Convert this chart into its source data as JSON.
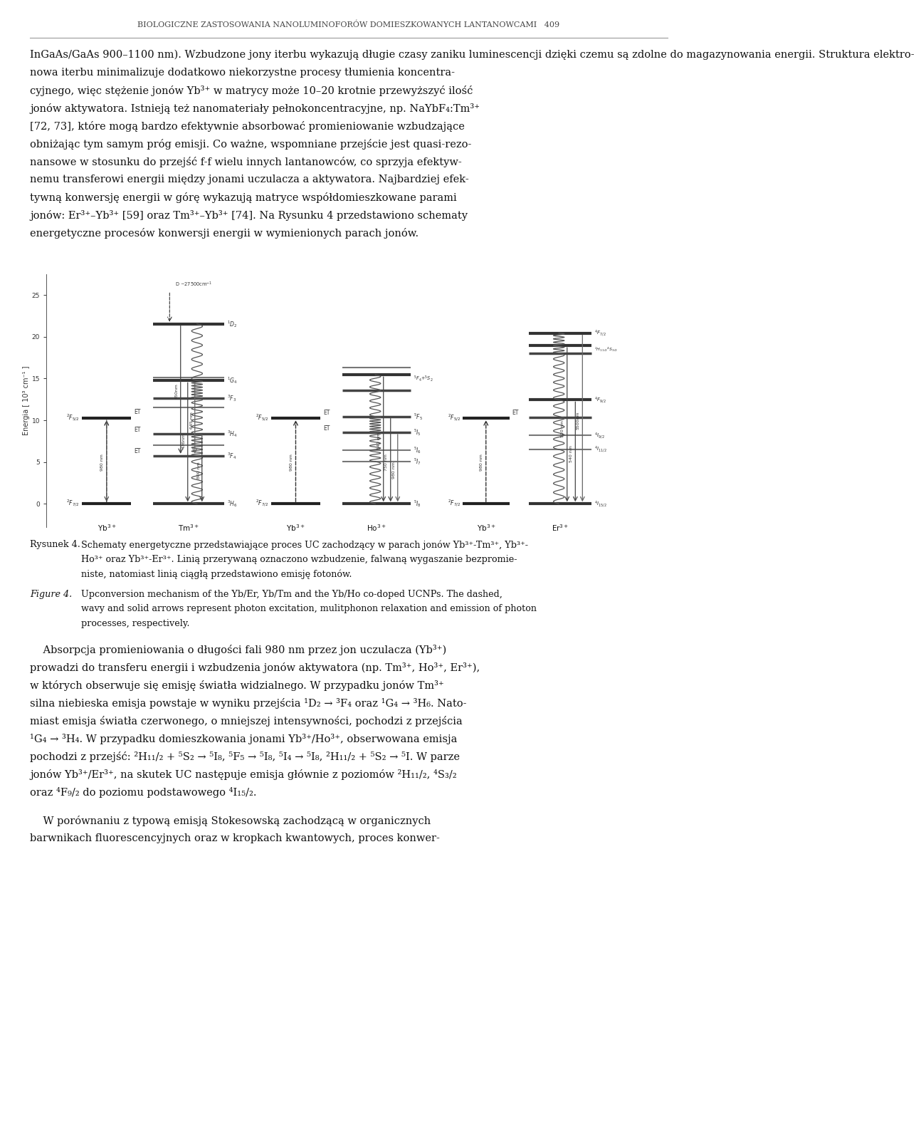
{
  "bg_color": "#ffffff",
  "text_color": "#111111",
  "header": "BIOLOGICZNE ZASTOSOWANIA NANOLUMINOFORÓW DOMIESZKOWANYCH LANTANOWCAMI   409",
  "para1_lines": [
    "InGaAs/GaAs 900–1100 nm). Wzbudzone jony iterbu wykazują długie czasy zaniku luminescencji dzięki czemu są zdolne do magazynowania energii. Struktura elektro-",
    "nowa iterbu minimalizuje dodatkowo niekorzystne procesy tłumienia koncentra-",
    "cyjnego, więc stężenie jonów Yb³⁺ w matrycy może 10–20 krotnie przewyższyć ilość",
    "jonów aktywatora. Istnieją też nanomateriały pełnokoncentracyjne, np. NaYbF₄:Tm³⁺",
    "[72, 73], które mogą bardzo efektywnie absorbować promieniowanie wzbudzające",
    "obniżając tym samym próg emisji. Co ważne, wspomniane przejście jest quasi-rezo-",
    "nansowe w stosunku do przejść f-f wielu innych lantanowców, co sprzyja efektyw-",
    "nemu transferowi energii między jonami uczulacza a aktywatora. Najbardziej efek-",
    "tywną konwersję energii w górę wykazują matryce współdomieszkowane parami",
    "jonów: Er³⁺–Yb³⁺ [59] oraz Tm³⁺–Yb³⁺ [74]. Na Rysunku 4 przedstawiono schematy",
    "energetyczne procesów konwersji energii w wymienionych parach jonów."
  ],
  "cap1a": "Rysunek 4.",
  "cap1b": "Schematy energetyczne przedstawiające proces UC zachodzący w parach jonów Yb³⁺-Tm³⁺, Yb³⁺-",
  "cap1c": "Ho³⁺ oraz Yb³⁺-Er³⁺. Linią przerywaną oznaczono wzbudzenie, falwaną wygaszanie bezpromie-",
  "cap1d": "niste, natomiast linią ciągłą przedstawiono emisję fotonów.",
  "cap2a": "Figure 4.",
  "cap2b": "Upconversion mechanism of the Yb/Er, Yb/Tm and the Yb/Ho co-doped UCNPs. The dashed,",
  "cap2c": "wavy and solid arrows represent photon excitation, mulitphonon relaxation and emission of photon",
  "cap2d": "processes, respectively.",
  "para2_lines": [
    "    Absorpcja promieniowania o długości fali 980 nm przez jon uczulacza (Yb³⁺)",
    "prowadzi do transferu energii i wzbudzenia jonów aktywatora (np. Tm³⁺, Ho³⁺, Er³⁺),",
    "w których obserwuje się emisję światła widzialnego. W przypadku jonów Tm³⁺",
    "silna niebieska emisja powstaje w wyniku przejścia ¹D₂ → ³F₄ oraz ¹G₄ → ³H₆. Nato-",
    "miast emisja światła czerwonego, o mniejszej intensywności, pochodzi z przejścia",
    "¹G₄ → ³H₄. W przypadku domieszkowania jonami Yb³⁺/Ho³⁺, obserwowana emisja",
    "pochodzi z przejść: ²H₁₁/₂ + ⁵S₂ → ⁵I₈, ⁵F₅ → ⁵I₈, ⁵I₄ → ⁵I₈, ²H₁₁/₂ + ⁵S₂ → ⁵I. W parze",
    "jonów Yb³⁺/Er³⁺, na skutek UC następuje emisja głównie z poziomów ²H₁₁/₂, ⁴S₃/₂",
    "oraz ⁴F₉/₂ do poziomu podstawowego ⁴I₁₅/₂."
  ],
  "para3_lines": [
    "    W porównaniu z typową emisją Stokesowską zachodzącą w organicznych",
    "barwnikach fluorescencyjnych oraz w kropkach kwantowych, proces konwer-"
  ],
  "fig_ylabel": "Energia [ 10³ cm⁻¹ ]"
}
